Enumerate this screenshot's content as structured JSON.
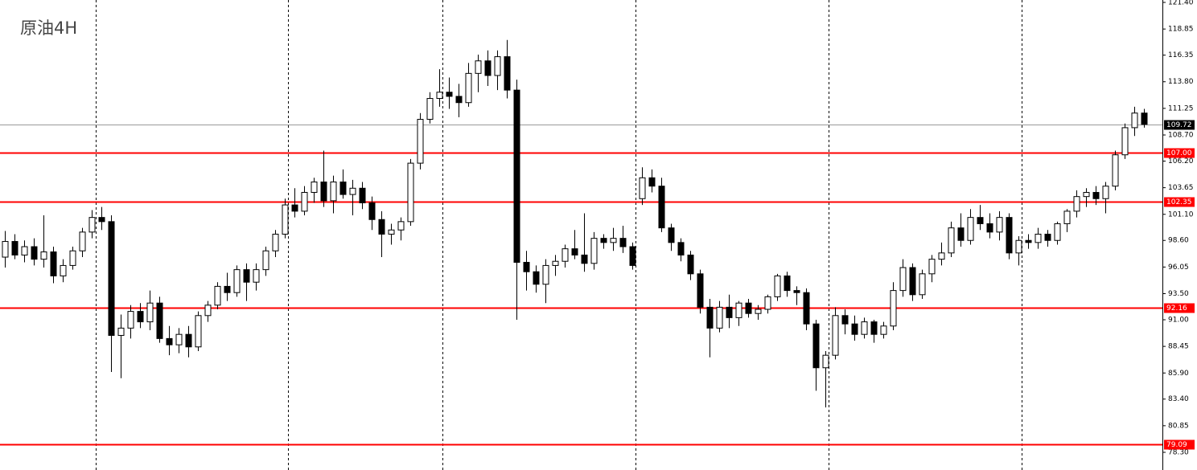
{
  "chart_data": {
    "type": "candlestick",
    "title": "原油4H",
    "ylim": [
      78.3,
      121.4
    ],
    "yticks": [
      {
        "value": 121.4,
        "label": "121.40"
      },
      {
        "value": 118.85,
        "label": "118.85"
      },
      {
        "value": 116.35,
        "label": "116.35"
      },
      {
        "value": 113.8,
        "label": "113.80"
      },
      {
        "value": 111.25,
        "label": "111.25"
      },
      {
        "value": 108.7,
        "label": "108.70"
      },
      {
        "value": 106.2,
        "label": "106.20"
      },
      {
        "value": 103.65,
        "label": "103.65"
      },
      {
        "value": 101.1,
        "label": "101.10"
      },
      {
        "value": 98.6,
        "label": "98.60"
      },
      {
        "value": 96.05,
        "label": "96.05"
      },
      {
        "value": 93.5,
        "label": "93.50"
      },
      {
        "value": 91.0,
        "label": "91.00"
      },
      {
        "value": 88.45,
        "label": "88.45"
      },
      {
        "value": 85.9,
        "label": "85.90"
      },
      {
        "value": 83.4,
        "label": "83.40"
      },
      {
        "value": 80.85,
        "label": "80.85"
      },
      {
        "value": 78.3,
        "label": "78.30"
      }
    ],
    "levels": [
      {
        "value": 107,
        "label": "107.00"
      },
      {
        "value": 102.35,
        "label": "102.35"
      },
      {
        "value": 92.16,
        "label": "92.16"
      },
      {
        "value": 79.09,
        "label": "79.09"
      }
    ],
    "level_color": "#ff0000",
    "last_price": {
      "value": 109.72,
      "label": "109.72"
    },
    "candles": [
      [
        97,
        99.5,
        96,
        98.5
      ],
      [
        98.5,
        99.2,
        96.8,
        97.2
      ],
      [
        97.2,
        98.6,
        96.5,
        98
      ],
      [
        98,
        98.8,
        96.2,
        96.8
      ],
      [
        96.8,
        101,
        96,
        97.5
      ],
      [
        97.5,
        98,
        94.5,
        95.2
      ],
      [
        95.2,
        96.8,
        94.6,
        96.2
      ],
      [
        96.2,
        98,
        95.8,
        97.6
      ],
      [
        97.6,
        99.8,
        97,
        99.4
      ],
      [
        99.4,
        101.5,
        98.8,
        100.8
      ],
      [
        100.8,
        101.8,
        99.6,
        100.4
      ],
      [
        100.4,
        101,
        86,
        89.5
      ],
      [
        89.5,
        91.5,
        85.4,
        90.2
      ],
      [
        90.2,
        92.4,
        89.2,
        91.8
      ],
      [
        91.8,
        92.6,
        90.2,
        90.8
      ],
      [
        90.8,
        93.8,
        90,
        92.6
      ],
      [
        92.6,
        93.2,
        88.8,
        89.2
      ],
      [
        89.2,
        90.4,
        87.6,
        88.6
      ],
      [
        88.6,
        90.2,
        87.8,
        89.6
      ],
      [
        89.6,
        90.4,
        87.4,
        88.4
      ],
      [
        88.4,
        91.8,
        88,
        91.4
      ],
      [
        91.4,
        92.8,
        90.8,
        92.4
      ],
      [
        92.4,
        94.6,
        92,
        94.2
      ],
      [
        94.2,
        95.5,
        92.8,
        93.6
      ],
      [
        93.6,
        96.2,
        93.2,
        95.8
      ],
      [
        95.8,
        96.4,
        92.8,
        94.6
      ],
      [
        94.6,
        96.4,
        93.8,
        95.8
      ],
      [
        95.8,
        98,
        95.2,
        97.6
      ],
      [
        97.6,
        99.6,
        97,
        99.2
      ],
      [
        99.2,
        102.6,
        98.8,
        102
      ],
      [
        102,
        103.6,
        100.8,
        101.4
      ],
      [
        101.4,
        103.8,
        101,
        103.2
      ],
      [
        103.2,
        104.6,
        102.2,
        104.2
      ],
      [
        104.2,
        107.2,
        101.8,
        102.4
      ],
      [
        102.4,
        104.8,
        101.2,
        104.2
      ],
      [
        104.2,
        105.4,
        102.6,
        103
      ],
      [
        103,
        104.4,
        101,
        103.6
      ],
      [
        103.6,
        104.2,
        101.6,
        102.2
      ],
      [
        102.2,
        102.8,
        99.6,
        100.6
      ],
      [
        100.6,
        101.4,
        97,
        99.2
      ],
      [
        99.2,
        100.2,
        98.2,
        99.6
      ],
      [
        99.6,
        100.8,
        98.6,
        100.4
      ],
      [
        100.4,
        106.4,
        100,
        106
      ],
      [
        106,
        110.8,
        105.4,
        110.2
      ],
      [
        110.2,
        112.8,
        109.8,
        112.2
      ],
      [
        112.2,
        115,
        111.4,
        112.8
      ],
      [
        112.8,
        114.2,
        111.2,
        112.4
      ],
      [
        112.4,
        113.6,
        110.4,
        111.8
      ],
      [
        111.8,
        115.6,
        111.4,
        114.6
      ],
      [
        114.6,
        116.4,
        112.8,
        115.8
      ],
      [
        115.8,
        116.8,
        113.4,
        114.4
      ],
      [
        114.4,
        116.8,
        113,
        116.2
      ],
      [
        116.2,
        117.8,
        112.2,
        113
      ],
      [
        113,
        114,
        91,
        96.5
      ],
      [
        96.5,
        97.6,
        93.8,
        95.6
      ],
      [
        95.6,
        96.2,
        93.6,
        94.4
      ],
      [
        94.4,
        96.8,
        92.6,
        96.2
      ],
      [
        96.2,
        97.2,
        95.2,
        96.6
      ],
      [
        96.6,
        98.2,
        96,
        97.8
      ],
      [
        97.8,
        99.6,
        96.8,
        97.2
      ],
      [
        97.2,
        101.2,
        95.6,
        96.4
      ],
      [
        96.4,
        99.4,
        95.8,
        98.8
      ],
      [
        98.8,
        99.2,
        97.8,
        98.4
      ],
      [
        98.4,
        99.8,
        97.6,
        98.8
      ],
      [
        98.8,
        100,
        97.4,
        98
      ],
      [
        98,
        98.4,
        95.8,
        96.2
      ],
      [
        102.6,
        105.6,
        102,
        104.6
      ],
      [
        104.6,
        105.4,
        103.2,
        103.8
      ],
      [
        103.8,
        104.6,
        99.4,
        99.8
      ],
      [
        99.8,
        100.2,
        97.6,
        98.4
      ],
      [
        98.4,
        98.8,
        96.6,
        97.2
      ],
      [
        97.2,
        97.6,
        94.8,
        95.4
      ],
      [
        95.4,
        95.8,
        91.6,
        92.2
      ],
      [
        92.2,
        93,
        87.4,
        90.2
      ],
      [
        90.2,
        92.8,
        89.8,
        92.2
      ],
      [
        92.2,
        93.4,
        90.2,
        91.2
      ],
      [
        91.2,
        92.8,
        90.4,
        92.6
      ],
      [
        92.6,
        93,
        91.2,
        91.6
      ],
      [
        91.6,
        92.4,
        91,
        92
      ],
      [
        92,
        93.4,
        91.6,
        93.2
      ],
      [
        93.2,
        95.4,
        92.8,
        95.2
      ],
      [
        95.2,
        95.6,
        93.2,
        93.8
      ],
      [
        93.8,
        94.2,
        92.4,
        93.6
      ],
      [
        93.6,
        94,
        90,
        90.6
      ],
      [
        90.6,
        91,
        84.2,
        86.4
      ],
      [
        86.4,
        88,
        82.6,
        87.6
      ],
      [
        87.6,
        92.2,
        87.2,
        91.4
      ],
      [
        91.4,
        92,
        89.6,
        90.6
      ],
      [
        90.6,
        91.4,
        89,
        89.6
      ],
      [
        89.6,
        91.2,
        89.2,
        90.8
      ],
      [
        90.8,
        91,
        88.8,
        89.6
      ],
      [
        89.6,
        90.8,
        89.2,
        90.4
      ],
      [
        90.4,
        94.6,
        90,
        93.8
      ],
      [
        93.8,
        96.8,
        93.2,
        96
      ],
      [
        96,
        96.4,
        92.8,
        93.4
      ],
      [
        93.4,
        95.8,
        93,
        95.4
      ],
      [
        95.4,
        97.2,
        94.6,
        96.8
      ],
      [
        96.8,
        98.4,
        96.2,
        97.4
      ],
      [
        97.4,
        100.4,
        97,
        99.8
      ],
      [
        99.8,
        101.2,
        98,
        98.6
      ],
      [
        98.6,
        101.6,
        98.2,
        100.8
      ],
      [
        100.8,
        102,
        99.6,
        100.2
      ],
      [
        100.2,
        101.2,
        98.8,
        99.4
      ],
      [
        99.4,
        101.4,
        98.6,
        100.8
      ],
      [
        100.8,
        101.2,
        96.8,
        97.4
      ],
      [
        97.4,
        99,
        96.2,
        98.6
      ],
      [
        98.6,
        99.2,
        97.8,
        98.4
      ],
      [
        98.4,
        99.8,
        97.8,
        99.2
      ],
      [
        99.2,
        99.6,
        98,
        98.6
      ],
      [
        98.6,
        100.4,
        98.2,
        100.2
      ],
      [
        100.2,
        101.6,
        99.4,
        101.4
      ],
      [
        101.4,
        103.4,
        100.8,
        102.8
      ],
      [
        102.8,
        103.6,
        101.8,
        103.2
      ],
      [
        103.2,
        103.8,
        102,
        102.6
      ],
      [
        102.6,
        104.2,
        101.2,
        103.8
      ],
      [
        103.8,
        107.2,
        103.4,
        106.8
      ],
      [
        106.8,
        109.8,
        106.4,
        109.4
      ],
      [
        109.4,
        111.4,
        108.6,
        110.8
      ],
      [
        110.8,
        111.2,
        109.4,
        109.72
      ]
    ]
  }
}
